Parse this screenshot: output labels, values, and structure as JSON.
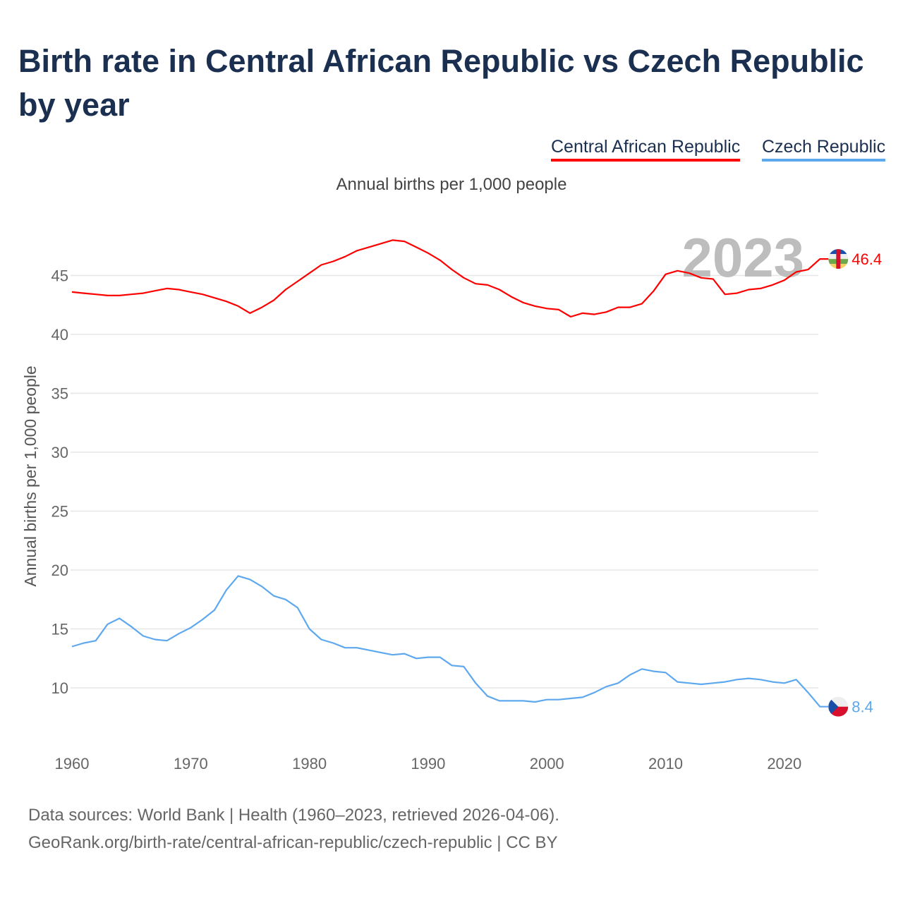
{
  "title": "Birth rate in Central African Republic vs Czech Republic by year",
  "footer": {
    "line1": "Data sources: World Bank | Health (1960–2023, retrieved 2026-04-06).",
    "line2": "GeoRank.org/birth-rate/central-african-republic/czech-republic | CC BY"
  },
  "chart_data": {
    "type": "line",
    "title": "Birth rate in Central African Republic vs Czech Republic by year",
    "subtitle": "Annual births per 1,000 people",
    "xlabel": "",
    "ylabel": "Annual births per 1,000 people",
    "year_watermark": "2023",
    "xlim": [
      1960,
      2023
    ],
    "ylim": [
      6.5,
      49.5
    ],
    "xticks": [
      "1960",
      "1970",
      "1980",
      "1990",
      "2000",
      "2010",
      "2020"
    ],
    "yticks": [
      "10",
      "15",
      "20",
      "25",
      "30",
      "35",
      "40",
      "45"
    ],
    "grid": true,
    "legend_position": "top-right",
    "x": [
      1960,
      1961,
      1962,
      1963,
      1964,
      1965,
      1966,
      1967,
      1968,
      1969,
      1970,
      1971,
      1972,
      1973,
      1974,
      1975,
      1976,
      1977,
      1978,
      1979,
      1980,
      1981,
      1982,
      1983,
      1984,
      1985,
      1986,
      1987,
      1988,
      1989,
      1990,
      1991,
      1992,
      1993,
      1994,
      1995,
      1996,
      1997,
      1998,
      1999,
      2000,
      2001,
      2002,
      2003,
      2004,
      2005,
      2006,
      2007,
      2008,
      2009,
      2010,
      2011,
      2012,
      2013,
      2014,
      2015,
      2016,
      2017,
      2018,
      2019,
      2020,
      2021,
      2022,
      2023
    ],
    "series": [
      {
        "name": "Central African Republic",
        "color": "#ff0000",
        "end_label": "46.4",
        "flag": "central-african-republic-flag",
        "values": [
          43.6,
          43.5,
          43.4,
          43.3,
          43.3,
          43.4,
          43.5,
          43.7,
          43.9,
          43.8,
          43.6,
          43.4,
          43.1,
          42.8,
          42.4,
          41.8,
          42.3,
          42.9,
          43.8,
          44.5,
          45.2,
          45.9,
          46.2,
          46.6,
          47.1,
          47.4,
          47.7,
          48.0,
          47.9,
          47.4,
          46.9,
          46.3,
          45.5,
          44.8,
          44.3,
          44.2,
          43.8,
          43.2,
          42.7,
          42.4,
          42.2,
          42.1,
          41.5,
          41.8,
          41.7,
          41.9,
          42.3,
          42.3,
          42.6,
          43.7,
          45.1,
          45.4,
          45.2,
          44.8,
          44.7,
          43.4,
          43.5,
          43.8,
          43.9,
          44.2,
          44.6,
          45.3,
          45.5,
          46.4
        ]
      },
      {
        "name": "Czech Republic",
        "color": "#5ea8ee",
        "end_label": "8.4",
        "flag": "czech-republic-flag",
        "values": [
          13.5,
          13.8,
          14.0,
          15.4,
          15.9,
          15.2,
          14.4,
          14.1,
          14.0,
          14.6,
          15.1,
          15.8,
          16.6,
          18.3,
          19.5,
          19.2,
          18.6,
          17.8,
          17.5,
          16.8,
          15.0,
          14.1,
          13.8,
          13.4,
          13.4,
          13.2,
          13.0,
          12.8,
          12.9,
          12.5,
          12.6,
          12.6,
          11.9,
          11.8,
          10.4,
          9.3,
          8.9,
          8.9,
          8.9,
          8.8,
          9.0,
          9.0,
          9.1,
          9.2,
          9.6,
          10.1,
          10.4,
          11.1,
          11.6,
          11.4,
          11.3,
          10.5,
          10.4,
          10.3,
          10.4,
          10.5,
          10.7,
          10.8,
          10.7,
          10.5,
          10.4,
          10.7,
          9.6,
          8.4
        ]
      }
    ]
  }
}
